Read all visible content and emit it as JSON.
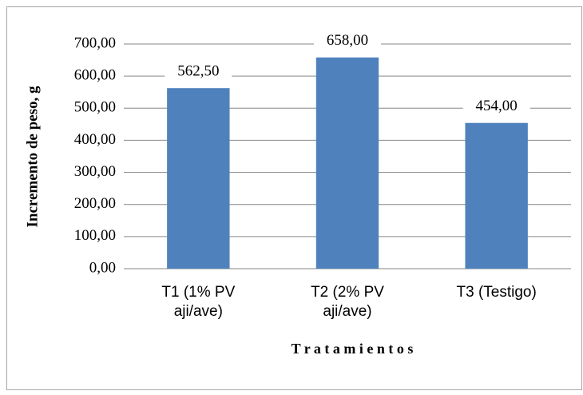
{
  "chart_data": {
    "type": "bar",
    "y_label": "Incremento de peso, g",
    "x_label": "T r a t a m i e n t o s",
    "categories": [
      "T1 (1% PV aji/ave)",
      "T2 (2% PV aji/ave)",
      "T3 (Testigo)"
    ],
    "values": [
      562.5,
      658,
      454
    ],
    "value_labels": [
      "562,50",
      "658,00",
      "454,00"
    ],
    "color": "#4f81bd",
    "ylim": [
      0,
      700
    ],
    "yticks": [
      {
        "value": 0,
        "label": "0,00"
      },
      {
        "value": 100,
        "label": "100,00"
      },
      {
        "value": 200,
        "label": "200,00"
      },
      {
        "value": 300,
        "label": "300,00"
      },
      {
        "value": 400,
        "label": "400,00"
      },
      {
        "value": 500,
        "label": "500,00"
      },
      {
        "value": 600,
        "label": "600,00"
      },
      {
        "value": 700,
        "label": "700,00"
      }
    ],
    "grid": true
  }
}
